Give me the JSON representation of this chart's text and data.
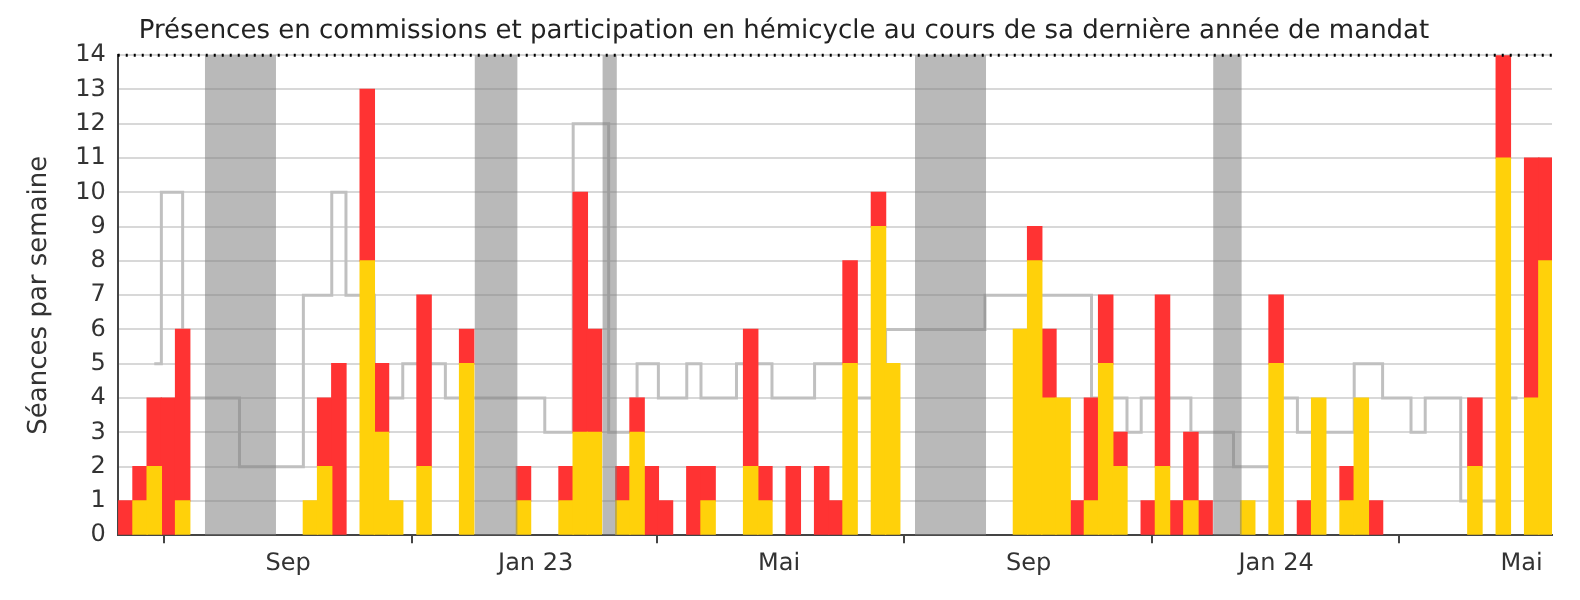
{
  "chart_data": {
    "type": "bar",
    "title": "Présences en commissions et participation en hémicycle au cours de sa dernière année de mandat",
    "ylabel": "Séances par semaine",
    "stacked": true,
    "grid": "y",
    "legend": false,
    "x": [
      "2022-06-13",
      "2022-06-20",
      "2022-06-27",
      "2022-07-04",
      "2022-07-11",
      "2022-07-18",
      "2022-07-25",
      "2022-08-01",
      "2022-08-08",
      "2022-08-15",
      "2022-08-22",
      "2022-08-29",
      "2022-09-05",
      "2022-09-12",
      "2022-09-19",
      "2022-09-26",
      "2022-10-03",
      "2022-10-10",
      "2022-10-17",
      "2022-10-24",
      "2022-10-31",
      "2022-11-07",
      "2022-11-14",
      "2022-11-21",
      "2022-11-28",
      "2022-12-05",
      "2022-12-12",
      "2022-12-19",
      "2022-12-26",
      "2023-01-02",
      "2023-01-09",
      "2023-01-16",
      "2023-01-23",
      "2023-01-30",
      "2023-02-06",
      "2023-02-13",
      "2023-02-20",
      "2023-02-27",
      "2023-03-06",
      "2023-03-13",
      "2023-03-20",
      "2023-03-27",
      "2023-04-03",
      "2023-04-10",
      "2023-04-17",
      "2023-04-24",
      "2023-05-01",
      "2023-05-08",
      "2023-05-15",
      "2023-05-22",
      "2023-05-29",
      "2023-06-05",
      "2023-06-12",
      "2023-06-19",
      "2023-06-26",
      "2023-07-03",
      "2023-07-10",
      "2023-07-17",
      "2023-07-24",
      "2023-07-31",
      "2023-08-07",
      "2023-08-14",
      "2023-08-21",
      "2023-08-28",
      "2023-09-04",
      "2023-09-11",
      "2023-09-18",
      "2023-09-25",
      "2023-10-02",
      "2023-10-09",
      "2023-10-16",
      "2023-10-23",
      "2023-10-30",
      "2023-11-06",
      "2023-11-13",
      "2023-11-20",
      "2023-11-27",
      "2023-12-04",
      "2023-12-11",
      "2023-12-18",
      "2023-12-25",
      "2024-01-01",
      "2024-01-08",
      "2024-01-15",
      "2024-01-22",
      "2024-01-29",
      "2024-02-05",
      "2024-02-12",
      "2024-02-19",
      "2024-02-26",
      "2024-03-04",
      "2024-03-11",
      "2024-03-18",
      "2024-03-25",
      "2024-04-01",
      "2024-04-08",
      "2024-04-15",
      "2024-04-22",
      "2024-04-29",
      "2024-05-06",
      "2024-05-13"
    ],
    "series": [
      {
        "color": "#ffd10a",
        "values": [
          null,
          1,
          2,
          null,
          1,
          null,
          null,
          null,
          null,
          null,
          null,
          null,
          null,
          1,
          2,
          null,
          null,
          8,
          3,
          1,
          null,
          2,
          null,
          null,
          5,
          null,
          null,
          null,
          1,
          null,
          null,
          1,
          3,
          3,
          null,
          1,
          3,
          null,
          null,
          null,
          null,
          1,
          null,
          null,
          2,
          1,
          null,
          null,
          null,
          null,
          null,
          5,
          null,
          9,
          5,
          null,
          null,
          null,
          null,
          null,
          null,
          null,
          null,
          6,
          8,
          4,
          4,
          null,
          1,
          5,
          2,
          null,
          null,
          2,
          null,
          1,
          null,
          null,
          null,
          1,
          null,
          5,
          null,
          null,
          4,
          null,
          1,
          4,
          null,
          null,
          null,
          null,
          null,
          null,
          null,
          2,
          null,
          11,
          null,
          4,
          8
        ]
      },
      {
        "color": "#ff3333",
        "values": [
          1,
          1,
          2,
          4,
          5,
          null,
          null,
          null,
          null,
          null,
          null,
          null,
          null,
          null,
          2,
          5,
          null,
          5,
          2,
          null,
          null,
          5,
          null,
          null,
          1,
          null,
          null,
          null,
          1,
          null,
          null,
          1,
          7,
          3,
          null,
          1,
          1,
          2,
          1,
          null,
          2,
          1,
          null,
          null,
          4,
          1,
          null,
          2,
          null,
          2,
          1,
          3,
          null,
          1,
          null,
          null,
          null,
          null,
          null,
          null,
          null,
          null,
          null,
          null,
          1,
          2,
          null,
          1,
          3,
          2,
          1,
          null,
          1,
          5,
          1,
          2,
          1,
          null,
          null,
          null,
          null,
          2,
          null,
          1,
          null,
          null,
          1,
          null,
          1,
          null,
          null,
          null,
          null,
          null,
          null,
          2,
          null,
          3,
          null,
          7,
          3
        ]
      },
      {
        "type": "step",
        "color": "#c0c0c0",
        "values": [
          null,
          null,
          5,
          10,
          null,
          4,
          null,
          null,
          null,
          null,
          null,
          2,
          2,
          7,
          7,
          10,
          7,
          null,
          null,
          4,
          5,
          null,
          5,
          4,
          null,
          null,
          null,
          null,
          4,
          4,
          3,
          null,
          null,
          12,
          null,
          3,
          null,
          5,
          4,
          4,
          5,
          4,
          null,
          null,
          null,
          5,
          4,
          4,
          4,
          5,
          5,
          null,
          4,
          null,
          null,
          6,
          null,
          null,
          null,
          null,
          null,
          null,
          null,
          null,
          null,
          null,
          7,
          null,
          null,
          null,
          4,
          3,
          4,
          null,
          4,
          null,
          3,
          null,
          null,
          null,
          2,
          null,
          4,
          3,
          null,
          3,
          null,
          null,
          5,
          4,
          4,
          3,
          4,
          null,
          null,
          null,
          1,
          null,
          4,
          null,
          null
        ]
      }
    ],
    "xlim": [
      "2022-06-09",
      "2024-05-16"
    ],
    "xticks": [
      {
        "value": "2022-09-01",
        "label": "Sep"
      },
      {
        "value": "2023-01-01",
        "label": "Jan 23"
      },
      {
        "value": "2023-05-01",
        "label": "Mai"
      },
      {
        "value": "2023-09-01",
        "label": "Sep"
      },
      {
        "value": "2024-01-01",
        "label": "Jan 24"
      },
      {
        "value": "2024-05-01",
        "label": "Mai"
      }
    ],
    "ylim": [
      0,
      14
    ],
    "yticks": [
      0,
      1,
      2,
      3,
      4,
      5,
      6,
      7,
      8,
      9,
      10,
      11,
      12,
      13,
      14
    ],
    "bands": [
      {
        "axis": "x",
        "from": "2022-07-22",
        "to": "2022-08-26",
        "color": "#808080"
      },
      {
        "axis": "x",
        "from": "2022-12-02",
        "to": "2022-12-23",
        "color": "#808080"
      },
      {
        "axis": "x",
        "from": "2023-02-03",
        "to": "2023-02-10",
        "color": "#808080"
      },
      {
        "axis": "x",
        "from": "2023-07-07",
        "to": "2023-08-11",
        "color": "#808080"
      },
      {
        "axis": "x",
        "from": "2023-12-01",
        "to": "2023-12-15",
        "color": "#808080"
      }
    ],
    "ref_lines": [
      {
        "axis": "y",
        "value": 14,
        "color": "#000000",
        "line_style": "dotted"
      }
    ]
  }
}
